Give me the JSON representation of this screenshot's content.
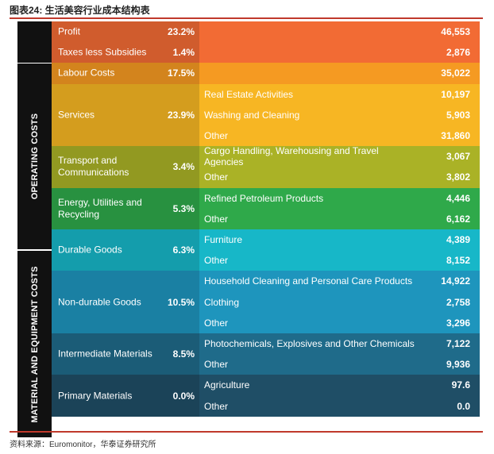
{
  "title": "图表24:  生活美容行业成本结构表",
  "source": "资料来源：Euromonitor，华泰证券研究所",
  "sidebar": {
    "operating": "OPERATING COSTS",
    "material": "MATERIAL AND EQUIPMENT COSTS"
  },
  "chart_data": {
    "type": "table",
    "groups": [
      {
        "label": "Profit",
        "pct": "23.2%",
        "color": "#f26b34",
        "items": [
          {
            "label": "",
            "value": "46,553"
          }
        ]
      },
      {
        "label": "Taxes less Subsidies",
        "pct": "1.4%",
        "color": "#f26b34",
        "items": [
          {
            "label": "",
            "value": "2,876"
          }
        ]
      },
      {
        "label": "Labour Costs",
        "pct": "17.5%",
        "color": "#f59a22",
        "items": [
          {
            "label": "",
            "value": "35,022"
          }
        ]
      },
      {
        "label": "Services",
        "pct": "23.9%",
        "color": "#f7b623",
        "items": [
          {
            "label": "Real Estate Activities",
            "value": "10,197"
          },
          {
            "label": "Washing and Cleaning",
            "value": "5,903"
          },
          {
            "label": "Other",
            "value": "31,860"
          }
        ]
      },
      {
        "label": "Transport and Communications",
        "pct": "3.4%",
        "color": "#aab226",
        "items": [
          {
            "label": "Cargo Handling, Warehousing and Travel Agencies",
            "value": "3,067"
          },
          {
            "label": "Other",
            "value": "3,802"
          }
        ]
      },
      {
        "label": "Energy, Utilities and Recycling",
        "pct": "5.3%",
        "color": "#2fa94a",
        "items": [
          {
            "label": "Refined Petroleum Products",
            "value": "4,446"
          },
          {
            "label": "Other",
            "value": "6,162"
          }
        ]
      },
      {
        "label": "Durable Goods",
        "pct": "6.3%",
        "color": "#17b7c8",
        "items": [
          {
            "label": "Furniture",
            "value": "4,389"
          },
          {
            "label": "Other",
            "value": "8,152"
          }
        ]
      },
      {
        "label": "Non-durable Goods",
        "pct": "10.5%",
        "color": "#1e95bd",
        "items": [
          {
            "label": "Household Cleaning and Personal Care Products",
            "value": "14,922"
          },
          {
            "label": "Clothing",
            "value": "2,758"
          },
          {
            "label": "Other",
            "value": "3,296"
          }
        ]
      },
      {
        "label": "Intermediate Materials",
        "pct": "8.5%",
        "color": "#1f6b8a",
        "items": [
          {
            "label": "Photochemicals, Explosives and Other Chemicals",
            "value": "7,122"
          },
          {
            "label": "Other",
            "value": "9,936"
          }
        ]
      },
      {
        "label": "Primary Materials",
        "pct": "0.0%",
        "color": "#1f4e66",
        "items": [
          {
            "label": "Agriculture",
            "value": "97.6"
          },
          {
            "label": "Other",
            "value": "0.0"
          }
        ]
      }
    ]
  }
}
